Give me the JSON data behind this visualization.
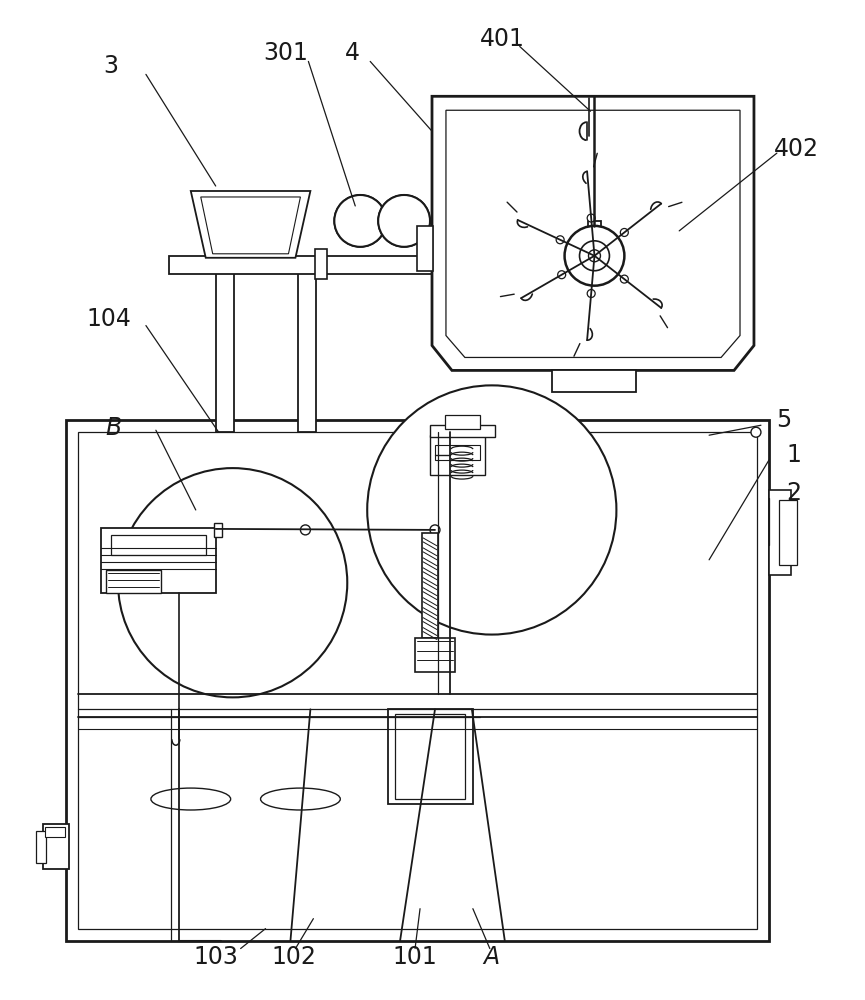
{
  "bg_color": "#ffffff",
  "line_color": "#1a1a1a",
  "label_color": "#000000",
  "figsize": [
    8.65,
    10.0
  ],
  "dpi": 100
}
